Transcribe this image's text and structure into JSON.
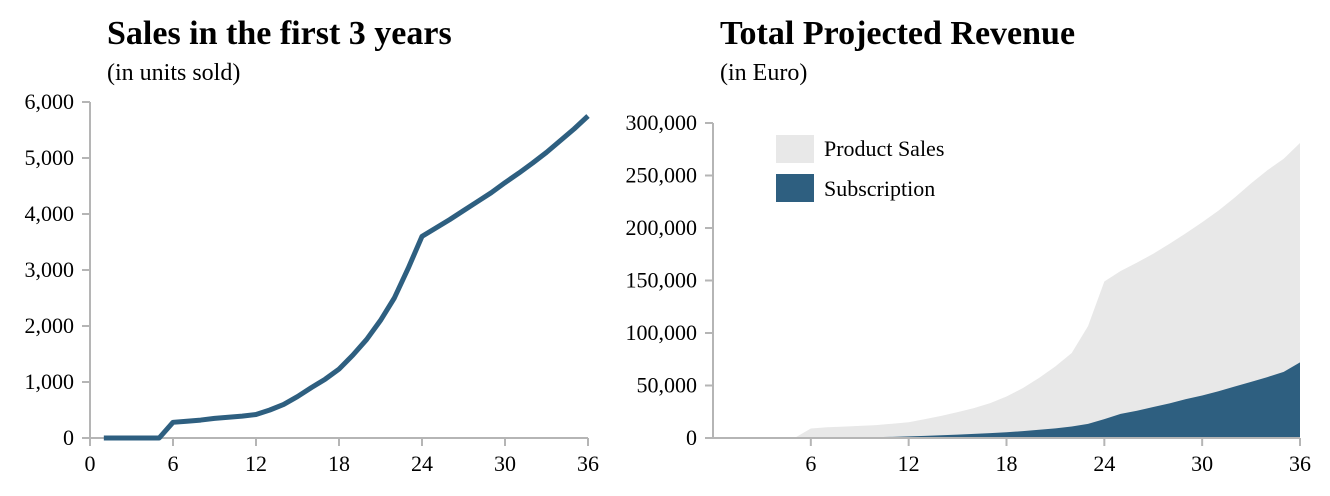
{
  "colors": {
    "primary": "#2e5f80",
    "secondary": "#e8e8e8",
    "axis": "#b5b5b5"
  },
  "chart_data": [
    {
      "type": "line",
      "title": "Sales in the first 3 years",
      "subtitle": "(in units sold)",
      "xlim": [
        0,
        36
      ],
      "ylim": [
        0,
        6000
      ],
      "xticks": [
        0,
        6,
        12,
        18,
        24,
        30,
        36
      ],
      "yticks": [
        0,
        1000,
        2000,
        3000,
        4000,
        5000,
        6000
      ],
      "xtick_labels": [
        "0",
        "6",
        "12",
        "18",
        "24",
        "30",
        "36"
      ],
      "ytick_labels": [
        "0",
        "1,000",
        "2,000",
        "3,000",
        "4,000",
        "5,000",
        "6,000"
      ],
      "grid": false,
      "x": [
        1,
        2,
        3,
        4,
        5,
        6,
        7,
        8,
        9,
        10,
        11,
        12,
        13,
        14,
        15,
        16,
        17,
        18,
        19,
        20,
        21,
        22,
        23,
        24,
        25,
        26,
        27,
        28,
        29,
        30,
        31,
        32,
        33,
        34,
        35,
        36
      ],
      "series": [
        {
          "values": [
            0,
            0,
            0,
            0,
            0,
            280,
            300,
            320,
            350,
            370,
            390,
            420,
            500,
            600,
            740,
            900,
            1050,
            1230,
            1480,
            1760,
            2100,
            2500,
            3030,
            3600,
            3750,
            3900,
            4060,
            4220,
            4380,
            4560,
            4730,
            4910,
            5100,
            5310,
            5520,
            5750
          ]
        }
      ]
    },
    {
      "type": "area",
      "stacked": true,
      "title": "Total Projected Revenue",
      "subtitle": "(in Euro)",
      "xlim": [
        0,
        36
      ],
      "ylim": [
        0,
        300000
      ],
      "xticks": [
        6,
        12,
        18,
        24,
        30,
        36
      ],
      "yticks": [
        0,
        50000,
        100000,
        150000,
        200000,
        250000,
        300000
      ],
      "xtick_labels": [
        "6",
        "12",
        "18",
        "24",
        "30",
        "36"
      ],
      "ytick_labels": [
        "0",
        "50,000",
        "100,000",
        "150,000",
        "200,000",
        "250,000",
        "300,000"
      ],
      "grid": false,
      "legend_position": "top-left",
      "x": [
        1,
        2,
        3,
        4,
        5,
        6,
        7,
        8,
        9,
        10,
        11,
        12,
        13,
        14,
        15,
        16,
        17,
        18,
        19,
        20,
        21,
        22,
        23,
        24,
        25,
        26,
        27,
        28,
        29,
        30,
        31,
        32,
        33,
        34,
        35,
        36
      ],
      "series": [
        {
          "name": "Subscription",
          "color": "#2e5f80",
          "values": [
            0,
            0,
            0,
            0,
            0,
            0,
            200,
            300,
            500,
            800,
            1100,
            1500,
            2000,
            2600,
            3200,
            3900,
            4700,
            5500,
            6500,
            7800,
            9200,
            11000,
            13500,
            18000,
            23000,
            26000,
            29500,
            33000,
            37000,
            40500,
            44500,
            49000,
            53500,
            58000,
            63000,
            72000
          ]
        },
        {
          "name": "Product Sales",
          "color": "#e8e8e8",
          "values": [
            0,
            0,
            0,
            0,
            0,
            9000,
            10000,
            10500,
            11000,
            11500,
            12500,
            13500,
            16000,
            18500,
            21500,
            24500,
            28500,
            34000,
            41000,
            49500,
            59000,
            70000,
            93000,
            131000,
            136000,
            141000,
            146000,
            152000,
            158000,
            165000,
            172000,
            180000,
            189000,
            197000,
            203000,
            209000
          ]
        }
      ]
    }
  ]
}
